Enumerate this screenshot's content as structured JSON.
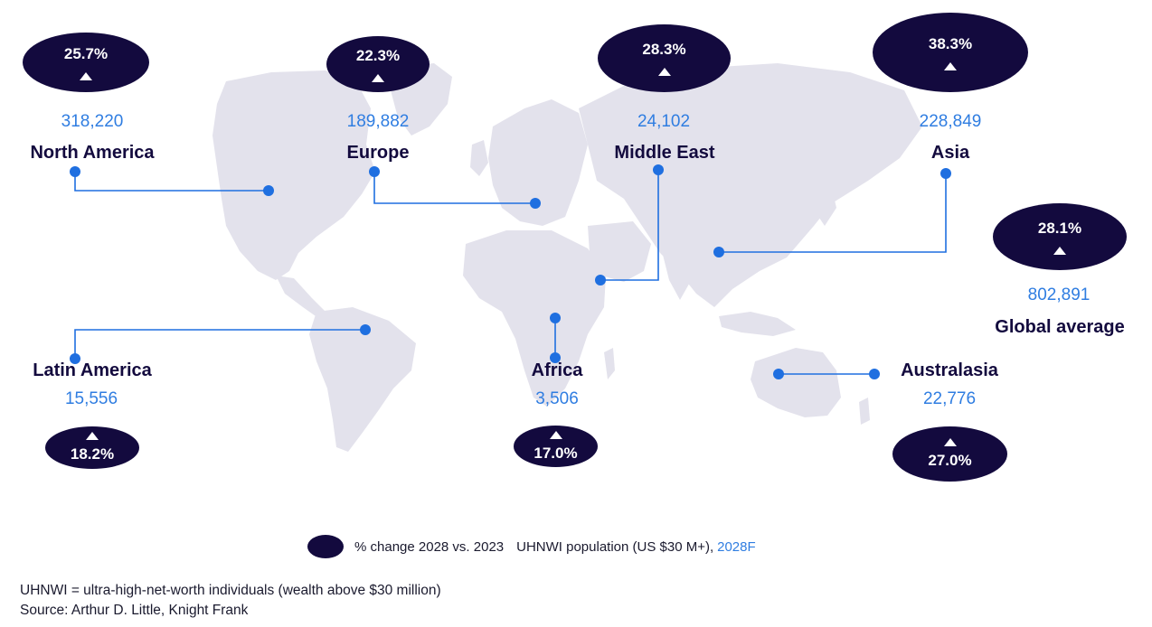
{
  "regions": {
    "north_america": {
      "name": "North America",
      "population": "318,220",
      "change": "25.7%"
    },
    "europe": {
      "name": "Europe",
      "population": "189,882",
      "change": "22.3%"
    },
    "middle_east": {
      "name": "Middle East",
      "population": "24,102",
      "change": "28.3%"
    },
    "asia": {
      "name": "Asia",
      "population": "228,849",
      "change": "38.3%"
    },
    "global": {
      "name": "Global average",
      "population": "802,891",
      "change": "28.1%"
    },
    "latin_america": {
      "name": "Latin America",
      "population": "15,556",
      "change": "18.2%"
    },
    "africa": {
      "name": "Africa",
      "population": "3,506",
      "change": "17.0%"
    },
    "australasia": {
      "name": "Australasia",
      "population": "22,776",
      "change": "27.0%"
    }
  },
  "legend": {
    "change_label": "% change 2028 vs. 2023",
    "population_label": "UHNWI population (US $30 M+),",
    "population_year": "2028F"
  },
  "footnotes": {
    "definition": "UHNWI = ultra-high-net-worth individuals (wealth above $30 million)",
    "source": "Source: Arthur D. Little, Knight Frank"
  },
  "colors": {
    "bubble": "#130a3e",
    "value_text": "#2f7de1",
    "connector": "#1f6fe0",
    "land": "#e3e2ec"
  }
}
